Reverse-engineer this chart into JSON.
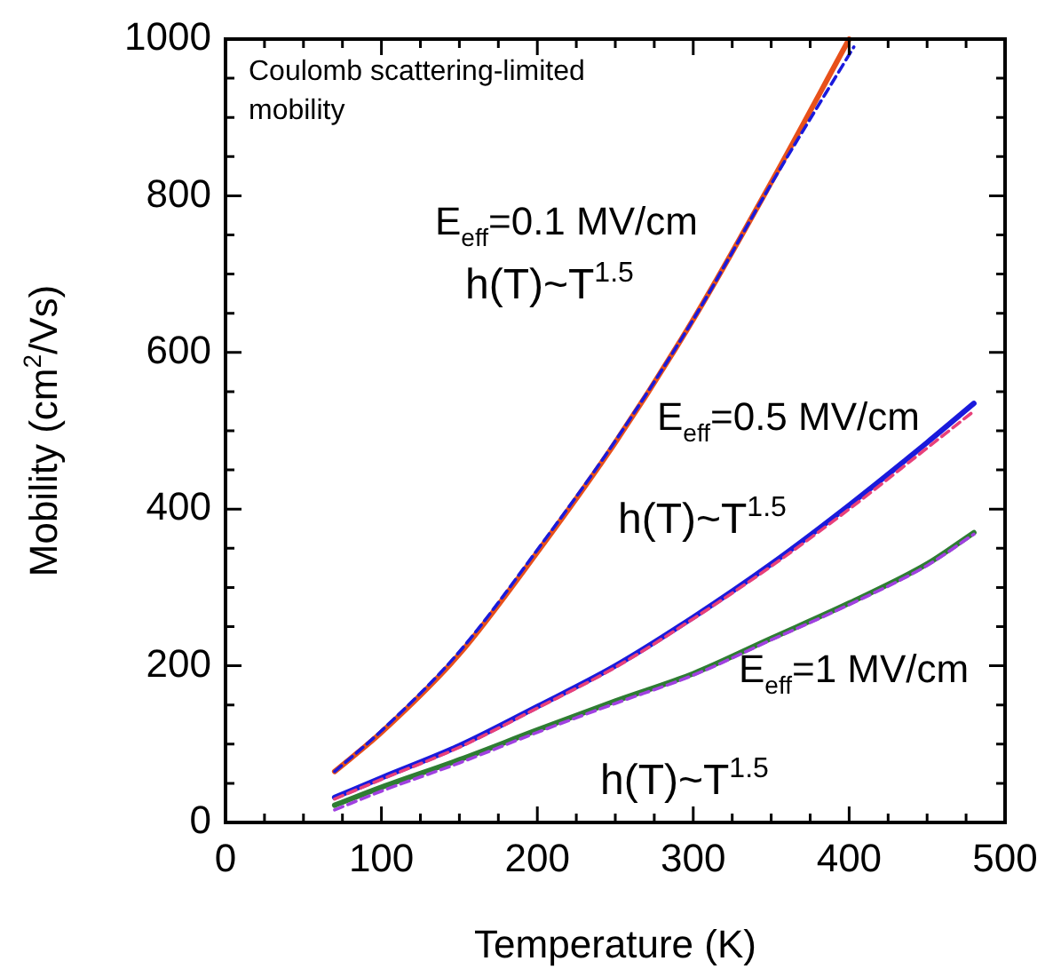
{
  "chart_data": {
    "type": "line",
    "xlabel": "Temperature (K)",
    "ylabel": "Mobility (cm$^{2}$/Vs)",
    "xlim": [
      0,
      500
    ],
    "ylim": [
      0,
      1000
    ],
    "xticks": [
      0,
      {
        "value": 25,
        "label": null
      },
      100,
      {
        "value": 50,
        "label": null
      },
      {
        "value": 75,
        "label": null
      },
      {
        "value": 125,
        "label": null
      },
      {
        "value": 150,
        "label": null
      },
      {
        "value": 175,
        "label": null
      },
      200,
      {
        "value": 225,
        "label": null
      },
      {
        "value": 250,
        "label": null
      },
      {
        "value": 275,
        "label": null
      },
      300,
      {
        "value": 325,
        "label": null
      },
      {
        "value": 350,
        "label": null
      },
      {
        "value": 375,
        "label": null
      },
      400,
      {
        "value": 425,
        "label": null
      },
      {
        "value": 450,
        "label": null
      },
      {
        "value": 475,
        "label": null
      },
      500
    ],
    "yticks": [
      0,
      {
        "value": 50,
        "label": null
      },
      {
        "value": 100,
        "label": null
      },
      {
        "value": 150,
        "label": null
      },
      200,
      {
        "value": 250,
        "label": null
      },
      {
        "value": 300,
        "label": null
      },
      {
        "value": 350,
        "label": null
      },
      400,
      {
        "value": 450,
        "label": null
      },
      {
        "value": 500,
        "label": null
      },
      {
        "value": 550,
        "label": null
      },
      600,
      {
        "value": 650,
        "label": null
      },
      {
        "value": 700,
        "label": null
      },
      {
        "value": 750,
        "label": null
      },
      800,
      {
        "value": 850,
        "label": null
      },
      {
        "value": 900,
        "label": null
      },
      {
        "value": 950,
        "label": null
      },
      1000
    ],
    "grid": false,
    "legend": false,
    "marker": "none",
    "series": [
      {
        "color": "#e8501a",
        "line_style": "solid",
        "x": [
          70,
          100,
          150,
          200,
          250,
          300,
          350,
          400
        ],
        "values": [
          65,
          115,
          215,
          345,
          485,
          642,
          817,
          1000
        ]
      },
      {
        "color": "#1a1adc",
        "line_style": "dashed",
        "x": [
          70,
          100,
          150,
          200,
          250,
          300,
          350,
          403
        ],
        "values": [
          65,
          117,
          218,
          348,
          487,
          642,
          815,
          990
        ]
      },
      {
        "color": "#1a1adc",
        "line_style": "solid",
        "x": [
          70,
          100,
          150,
          200,
          250,
          300,
          350,
          400,
          450,
          480
        ],
        "values": [
          32,
          57,
          98,
          148,
          200,
          262,
          330,
          405,
          485,
          535
        ]
      },
      {
        "color": "#e8407a",
        "line_style": "dashed",
        "x": [
          70,
          100,
          150,
          200,
          250,
          300,
          350,
          400,
          450,
          480
        ],
        "values": [
          30,
          55,
          96,
          146,
          198,
          260,
          327,
          400,
          478,
          525
        ]
      },
      {
        "color": "#2e7d32",
        "line_style": "solid",
        "x": [
          70,
          100,
          150,
          200,
          250,
          300,
          350,
          400,
          450,
          480
        ],
        "values": [
          22,
          45,
          80,
          118,
          155,
          190,
          235,
          280,
          330,
          370
        ]
      },
      {
        "color": "#a040e0",
        "line_style": "dashed",
        "x": [
          70,
          100,
          150,
          200,
          250,
          300,
          350,
          400,
          450,
          480
        ],
        "values": [
          16,
          40,
          76,
          115,
          152,
          188,
          233,
          278,
          328,
          368
        ]
      }
    ],
    "annotations": [
      "Coulomb scattering-limited mobility",
      "E$_{eff}$=0.1 MV/cm",
      "h(T)~T$^{1.5}$",
      "E$_{eff}$=0.5 MV/cm",
      "h(T)~T$^{1.5}$",
      "E$_{eff}$=1 MV/cm",
      "h(T)~T$^{1.5}$"
    ]
  }
}
